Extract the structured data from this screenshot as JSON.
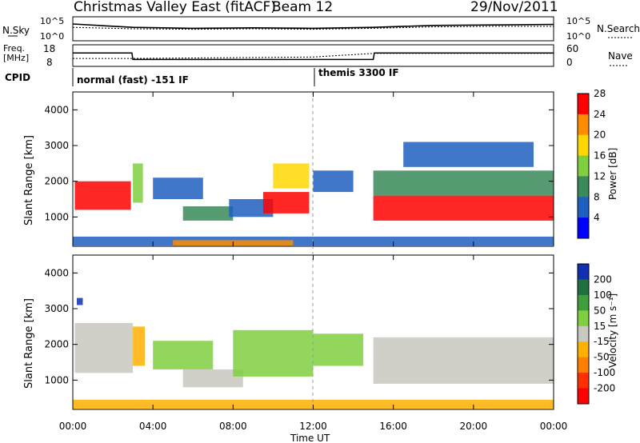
{
  "header": {
    "title": "Christmas Valley East (fitACF)",
    "beam": "Beam 12",
    "date": "29/Nov/2011"
  },
  "top_panels": {
    "nsky_label": "N.Sky",
    "nsearch_label": "N.Search",
    "nsky_ticks": [
      "10^5",
      "10^0"
    ],
    "nsearch_ticks": [
      "10^5",
      "10^0"
    ],
    "freq_label_1": "Freq.",
    "freq_label_2": "[MHz]",
    "freq_ticks": [
      "18",
      "8"
    ],
    "nave_label": "Nave",
    "nave_ticks": [
      "60",
      "0"
    ],
    "cpid_label": "CPID",
    "cpid_mode_1": "normal (fast) -151 IF",
    "cpid_mode_2": "themis 3300 IF"
  },
  "axes": {
    "ylabel": "Slant Range [km]",
    "xlabel": "Time UT",
    "x_ticks": [
      "00:00",
      "04:00",
      "08:00",
      "12:00",
      "16:00",
      "20:00",
      "00:00"
    ],
    "y_ticks": [
      "1000",
      "2000",
      "3000",
      "4000"
    ]
  },
  "colorbars": {
    "power": {
      "label": "Power [dB]",
      "ticks": [
        "4",
        "8",
        "12",
        "16",
        "20",
        "24",
        "28"
      ],
      "colors": [
        "#0000ff",
        "#1f5fbf",
        "#3a8a5a",
        "#7fcf3f",
        "#ffd700",
        "#ff8c00",
        "#ff0000"
      ]
    },
    "velocity": {
      "label": "Velocity [m s⁻¹]",
      "ticks": [
        "200",
        "100",
        "50",
        "15",
        "-15",
        "-50",
        "-100",
        "-200"
      ],
      "colors": [
        "#1030b0",
        "#1f6f3f",
        "#3f9f3f",
        "#7fcf3f",
        "#c8c8c0",
        "#ffb000",
        "#ff8000",
        "#ff3000",
        "#ff0000"
      ]
    }
  },
  "chart_data": [
    {
      "type": "line",
      "title": "N.Sky / N.Search",
      "x_range_hours": [
        0,
        24
      ],
      "series": [
        {
          "name": "N.Sky",
          "x": [
            0,
            3,
            6,
            9,
            12,
            15,
            18,
            21,
            24
          ],
          "values": [
            3.5,
            2.8,
            2.6,
            2.7,
            2.6,
            2.8,
            3.2,
            3.3,
            3.4
          ]
        },
        {
          "name": "N.Search",
          "x": [
            0,
            3,
            6,
            9,
            12,
            15,
            18,
            21,
            24
          ],
          "values": [
            2.8,
            2.5,
            2.4,
            2.5,
            2.4,
            2.6,
            2.9,
            3.0,
            3.0
          ]
        }
      ]
    },
    {
      "type": "line",
      "title": "Freq / Nave",
      "x_range_hours": [
        0,
        24
      ],
      "series": [
        {
          "name": "Freq",
          "x": [
            0,
            2.95,
            3.0,
            15.0,
            15.05,
            24
          ],
          "values": [
            14.2,
            14.2,
            11.2,
            11.2,
            14.2,
            14.2
          ]
        },
        {
          "name": "Nave",
          "x": [
            0,
            3.0,
            12.0,
            15.0,
            24
          ],
          "values": [
            22,
            22,
            26,
            36,
            36
          ]
        }
      ]
    },
    {
      "type": "heatmap",
      "title": "Power",
      "x_range_hours": [
        0,
        24
      ],
      "ylim_km": [
        180,
        4500
      ],
      "regions": [
        {
          "t0": 0.1,
          "t1": 2.9,
          "r0": 1200,
          "r1": 2000,
          "level": 28
        },
        {
          "t0": 3.0,
          "t1": 3.5,
          "r0": 1400,
          "r1": 2500,
          "level": 16
        },
        {
          "t0": 4.0,
          "t1": 6.5,
          "r0": 1500,
          "r1": 2100,
          "level": 8
        },
        {
          "t0": 5.5,
          "t1": 8.0,
          "r0": 900,
          "r1": 1300,
          "level": 12
        },
        {
          "t0": 7.8,
          "t1": 10.0,
          "r0": 1000,
          "r1": 1500,
          "level": 8
        },
        {
          "t0": 9.5,
          "t1": 11.8,
          "r0": 1100,
          "r1": 1700,
          "level": 28
        },
        {
          "t0": 10.0,
          "t1": 11.8,
          "r0": 1800,
          "r1": 2500,
          "level": 20
        },
        {
          "t0": 12.0,
          "t1": 14.0,
          "r0": 1700,
          "r1": 2300,
          "level": 8
        },
        {
          "t0": 15.0,
          "t1": 24.0,
          "r0": 900,
          "r1": 1600,
          "level": 28
        },
        {
          "t0": 15.0,
          "t1": 24.0,
          "r0": 1600,
          "r1": 2300,
          "level": 12
        },
        {
          "t0": 16.5,
          "t1": 23.0,
          "r0": 2400,
          "r1": 3100,
          "level": 8
        },
        {
          "t0": 0.0,
          "t1": 24.0,
          "r0": 200,
          "r1": 450,
          "level": 8
        },
        {
          "t0": 5.0,
          "t1": 11.0,
          "r0": 200,
          "r1": 350,
          "level": 24
        }
      ]
    },
    {
      "type": "heatmap",
      "title": "Velocity",
      "x_range_hours": [
        0,
        24
      ],
      "ylim_km": [
        180,
        4500
      ],
      "regions": [
        {
          "t0": 0.1,
          "t1": 3.0,
          "r0": 1200,
          "r1": 2600,
          "value": 0
        },
        {
          "t0": 3.0,
          "t1": 3.6,
          "r0": 1400,
          "r1": 2500,
          "value": -50
        },
        {
          "t0": 4.0,
          "t1": 7.0,
          "r0": 1300,
          "r1": 2100,
          "value": 30
        },
        {
          "t0": 5.5,
          "t1": 8.5,
          "r0": 800,
          "r1": 1300,
          "value": 0
        },
        {
          "t0": 8.0,
          "t1": 12.0,
          "r0": 1100,
          "r1": 2400,
          "value": 30
        },
        {
          "t0": 12.0,
          "t1": 14.5,
          "r0": 1400,
          "r1": 2300,
          "value": 30
        },
        {
          "t0": 15.0,
          "t1": 24.0,
          "r0": 900,
          "r1": 2200,
          "value": 0
        },
        {
          "t0": 0.0,
          "t1": 24.0,
          "r0": 200,
          "r1": 450,
          "value": -50
        },
        {
          "t0": 0.2,
          "t1": 0.5,
          "r0": 3100,
          "r1": 3300,
          "value": 200
        }
      ]
    }
  ]
}
